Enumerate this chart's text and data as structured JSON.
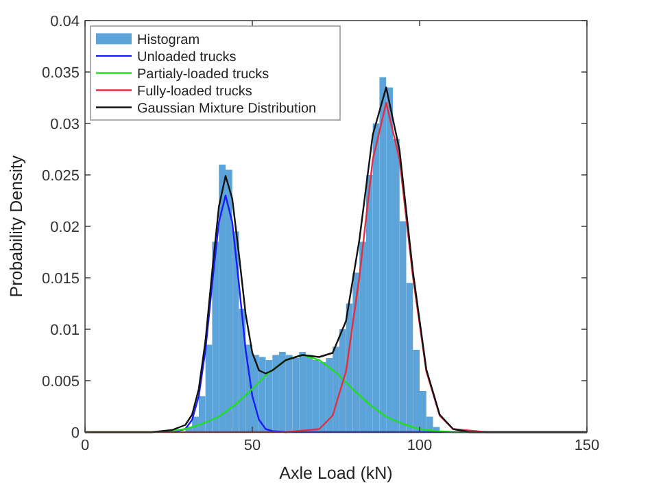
{
  "chart_data": {
    "type": "histogram",
    "xlabel": "Axle Load (kN)",
    "ylabel": "Probability Density",
    "xlim": [
      0,
      150
    ],
    "xticks": [
      0,
      50,
      100,
      150
    ],
    "ylim": [
      0,
      0.04
    ],
    "yticks": [
      0,
      0.005,
      0.01,
      0.015,
      0.02,
      0.025,
      0.03,
      0.035,
      0.04
    ],
    "legend": "top left",
    "grid": false,
    "series": [
      {
        "name": "Histogram",
        "color": "#5ba3d9",
        "bins": [
          30,
          32,
          34,
          36,
          38,
          40,
          42,
          44,
          46,
          48,
          50,
          52,
          54,
          56,
          58,
          60,
          62,
          64,
          66,
          68,
          70,
          72,
          74,
          76,
          78,
          80,
          82,
          84,
          86,
          88,
          90,
          92,
          94,
          96,
          98,
          100,
          102,
          104,
          106
        ],
        "values": [
          0.0005,
          0.0015,
          0.0035,
          0.0085,
          0.0185,
          0.026,
          0.0255,
          0.0195,
          0.012,
          0.0085,
          0.0075,
          0.0073,
          0.007,
          0.0075,
          0.0078,
          0.0075,
          0.0072,
          0.0078,
          0.0075,
          0.007,
          0.0068,
          0.0072,
          0.0083,
          0.01,
          0.0125,
          0.0155,
          0.0185,
          0.025,
          0.03,
          0.0345,
          0.0335,
          0.0285,
          0.0205,
          0.0145,
          0.008,
          0.004,
          0.0015,
          0.0005
        ]
      },
      {
        "type": "line",
        "name": "Unloaded trucks",
        "color": "#1a1aff",
        "x": [
          26,
          30,
          32,
          34,
          36,
          38,
          40,
          42,
          44,
          46,
          48,
          50,
          52,
          54,
          56,
          60,
          150
        ],
        "values": [
          0,
          0.0003,
          0.0012,
          0.0035,
          0.008,
          0.0144,
          0.0204,
          0.023,
          0.0204,
          0.0144,
          0.008,
          0.0035,
          0.0012,
          0.0003,
          0.0001,
          0,
          0
        ]
      },
      {
        "type": "line",
        "name": "Partialy-loaded trucks",
        "color": "#22dd22",
        "x": [
          0,
          20,
          25,
          30,
          35,
          40,
          45,
          50,
          55,
          60,
          65,
          70,
          75,
          80,
          85,
          90,
          95,
          100,
          105,
          110,
          120,
          150
        ],
        "values": [
          0,
          0,
          0.0001,
          0.0003,
          0.0008,
          0.0015,
          0.0027,
          0.0042,
          0.0058,
          0.007,
          0.0075,
          0.007,
          0.0058,
          0.0042,
          0.0027,
          0.0015,
          0.0008,
          0.0003,
          0.0001,
          0,
          0,
          0
        ]
      },
      {
        "type": "line",
        "name": "Fully-loaded trucks",
        "color": "#e02f3f",
        "x": [
          0,
          60,
          70,
          74,
          78,
          82,
          86,
          90,
          94,
          98,
          102,
          106,
          110,
          120,
          150
        ],
        "values": [
          0,
          0,
          0.0003,
          0.0016,
          0.0059,
          0.0151,
          0.0265,
          0.032,
          0.0265,
          0.0151,
          0.0059,
          0.0016,
          0.0003,
          0,
          0
        ]
      },
      {
        "type": "line",
        "name": "Gaussian Mixture Distribution",
        "color": "#111111",
        "x": [
          0,
          20,
          26,
          30,
          32,
          34,
          36,
          38,
          40,
          42,
          44,
          46,
          48,
          50,
          52,
          54,
          56,
          60,
          65,
          70,
          74,
          78,
          82,
          86,
          90,
          94,
          98,
          102,
          106,
          110,
          115,
          150
        ],
        "values": [
          0,
          0,
          0.0002,
          0.0007,
          0.0017,
          0.0042,
          0.0089,
          0.0156,
          0.0219,
          0.0249,
          0.0227,
          0.0173,
          0.0115,
          0.0077,
          0.006,
          0.0057,
          0.006,
          0.007,
          0.0075,
          0.0073,
          0.0077,
          0.0108,
          0.0187,
          0.0289,
          0.0335,
          0.0274,
          0.0156,
          0.0061,
          0.0017,
          0.0003,
          0,
          0
        ]
      }
    ]
  }
}
